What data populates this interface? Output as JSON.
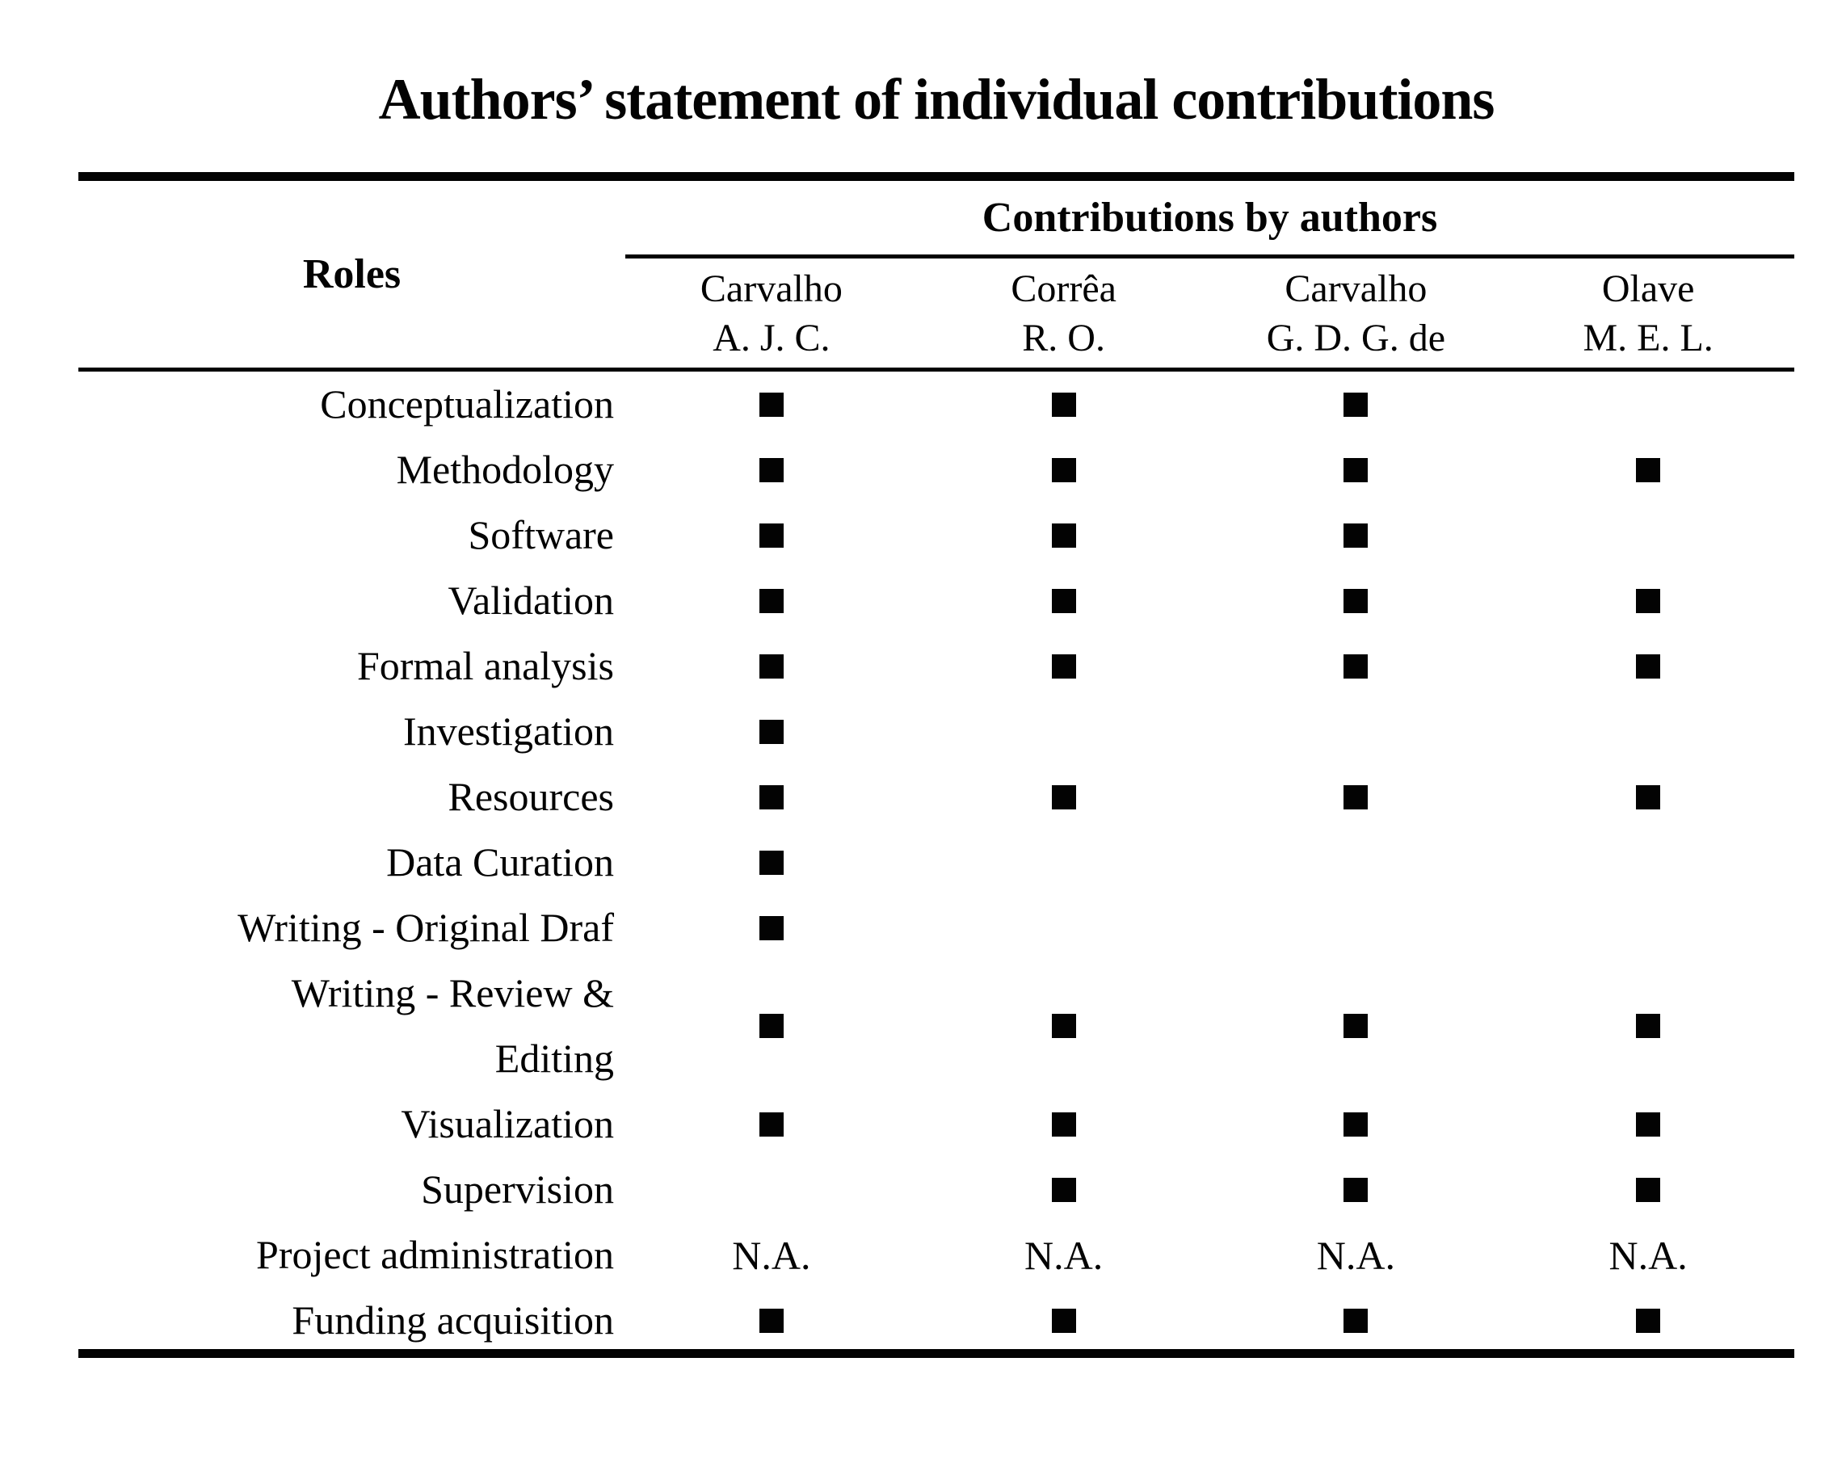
{
  "title": "Authors’ statement of individual contributions",
  "table": {
    "roles_header": "Roles",
    "group_header": "Contributions by authors",
    "na_label": "N.A.",
    "authors": [
      {
        "line1": "Carvalho",
        "line2": "A. J. C."
      },
      {
        "line1": "Corrêa",
        "line2": "R. O."
      },
      {
        "line1": "Carvalho",
        "line2": "G. D. G. de"
      },
      {
        "line1": "Olave",
        "line2": "M. E. L."
      }
    ],
    "rows": [
      {
        "role_lines": [
          "Conceptualization"
        ],
        "cells": [
          "filled",
          "filled",
          "filled",
          "empty"
        ]
      },
      {
        "role_lines": [
          "Methodology"
        ],
        "cells": [
          "filled",
          "filled",
          "filled",
          "filled"
        ]
      },
      {
        "role_lines": [
          "Software"
        ],
        "cells": [
          "filled",
          "filled",
          "filled",
          "empty"
        ]
      },
      {
        "role_lines": [
          "Validation"
        ],
        "cells": [
          "filled",
          "filled",
          "filled",
          "filled"
        ]
      },
      {
        "role_lines": [
          "Formal analysis"
        ],
        "cells": [
          "filled",
          "filled",
          "filled",
          "filled"
        ]
      },
      {
        "role_lines": [
          "Investigation"
        ],
        "cells": [
          "filled",
          "empty",
          "empty",
          "empty"
        ]
      },
      {
        "role_lines": [
          "Resources"
        ],
        "cells": [
          "filled",
          "filled",
          "filled",
          "filled"
        ]
      },
      {
        "role_lines": [
          "Data Curation"
        ],
        "cells": [
          "filled",
          "empty",
          "empty",
          "empty"
        ]
      },
      {
        "role_lines": [
          "Writing - Original Draf"
        ],
        "cells": [
          "filled",
          "empty",
          "empty",
          "empty"
        ]
      },
      {
        "role_lines": [
          "Writing - Review &",
          "Editing"
        ],
        "cells": [
          "filled",
          "filled",
          "filled",
          "filled"
        ]
      },
      {
        "role_lines": [
          "Visualization"
        ],
        "cells": [
          "filled",
          "filled",
          "filled",
          "filled"
        ]
      },
      {
        "role_lines": [
          "Supervision"
        ],
        "cells": [
          "empty",
          "filled",
          "filled",
          "filled"
        ]
      },
      {
        "role_lines": [
          "Project administration"
        ],
        "cells": [
          "na",
          "na",
          "na",
          "na"
        ]
      },
      {
        "role_lines": [
          "Funding acquisition"
        ],
        "cells": [
          "filled",
          "filled",
          "filled",
          "filled"
        ]
      }
    ]
  }
}
